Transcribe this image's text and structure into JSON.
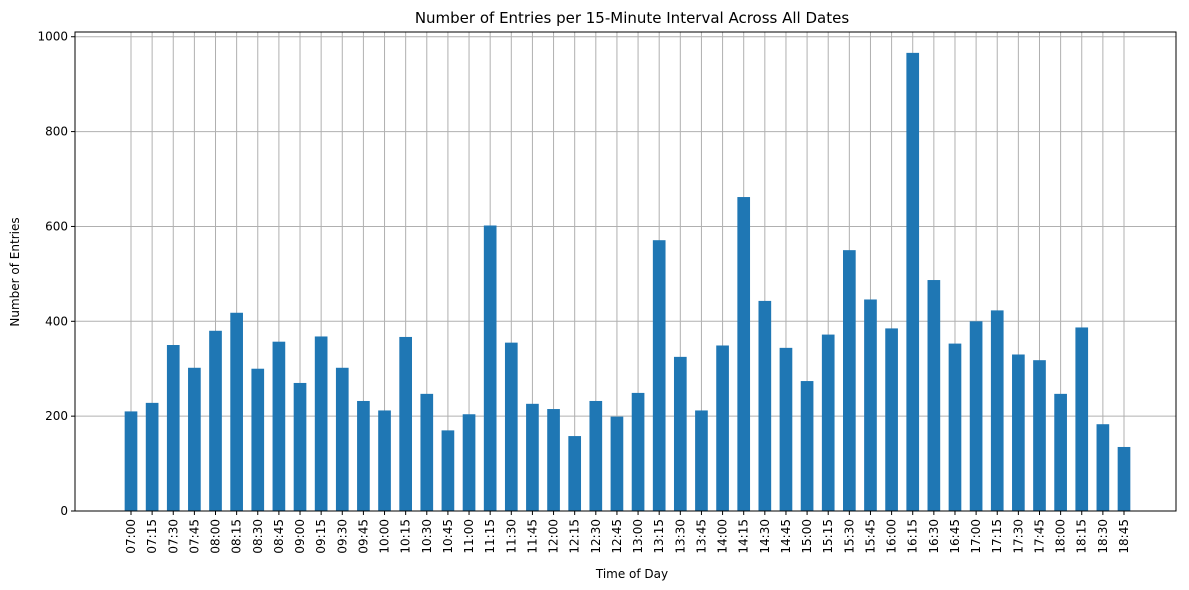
{
  "chart_data": {
    "type": "bar",
    "title": "Number of Entries per 15-Minute Interval Across All Dates",
    "xlabel": "Time of Day",
    "ylabel": "Number of Entries",
    "categories": [
      "07:00",
      "07:15",
      "07:30",
      "07:45",
      "08:00",
      "08:15",
      "08:30",
      "08:45",
      "09:00",
      "09:15",
      "09:30",
      "09:45",
      "10:00",
      "10:15",
      "10:30",
      "10:45",
      "11:00",
      "11:15",
      "11:30",
      "11:45",
      "12:00",
      "12:15",
      "12:30",
      "12:45",
      "13:00",
      "13:15",
      "13:30",
      "13:45",
      "14:00",
      "14:15",
      "14:30",
      "14:45",
      "15:00",
      "15:15",
      "15:30",
      "15:45",
      "16:00",
      "16:15",
      "16:30",
      "16:45",
      "17:00",
      "17:15",
      "17:30",
      "17:45",
      "18:00",
      "18:15",
      "18:30",
      "18:45"
    ],
    "values": [
      210,
      228,
      350,
      302,
      380,
      418,
      300,
      357,
      270,
      368,
      302,
      232,
      212,
      367,
      247,
      170,
      204,
      602,
      355,
      226,
      215,
      158,
      232,
      199,
      249,
      571,
      325,
      212,
      349,
      662,
      443,
      344,
      274,
      372,
      550,
      446,
      385,
      966,
      487,
      353,
      400,
      423,
      330,
      318,
      247,
      387,
      183,
      135
    ],
    "ylim": [
      0,
      1010
    ],
    "yticks": [
      0,
      200,
      400,
      600,
      800,
      1000
    ],
    "grid": true,
    "bar_color": "#1f77b4",
    "grid_color": "#b0b0b0"
  }
}
